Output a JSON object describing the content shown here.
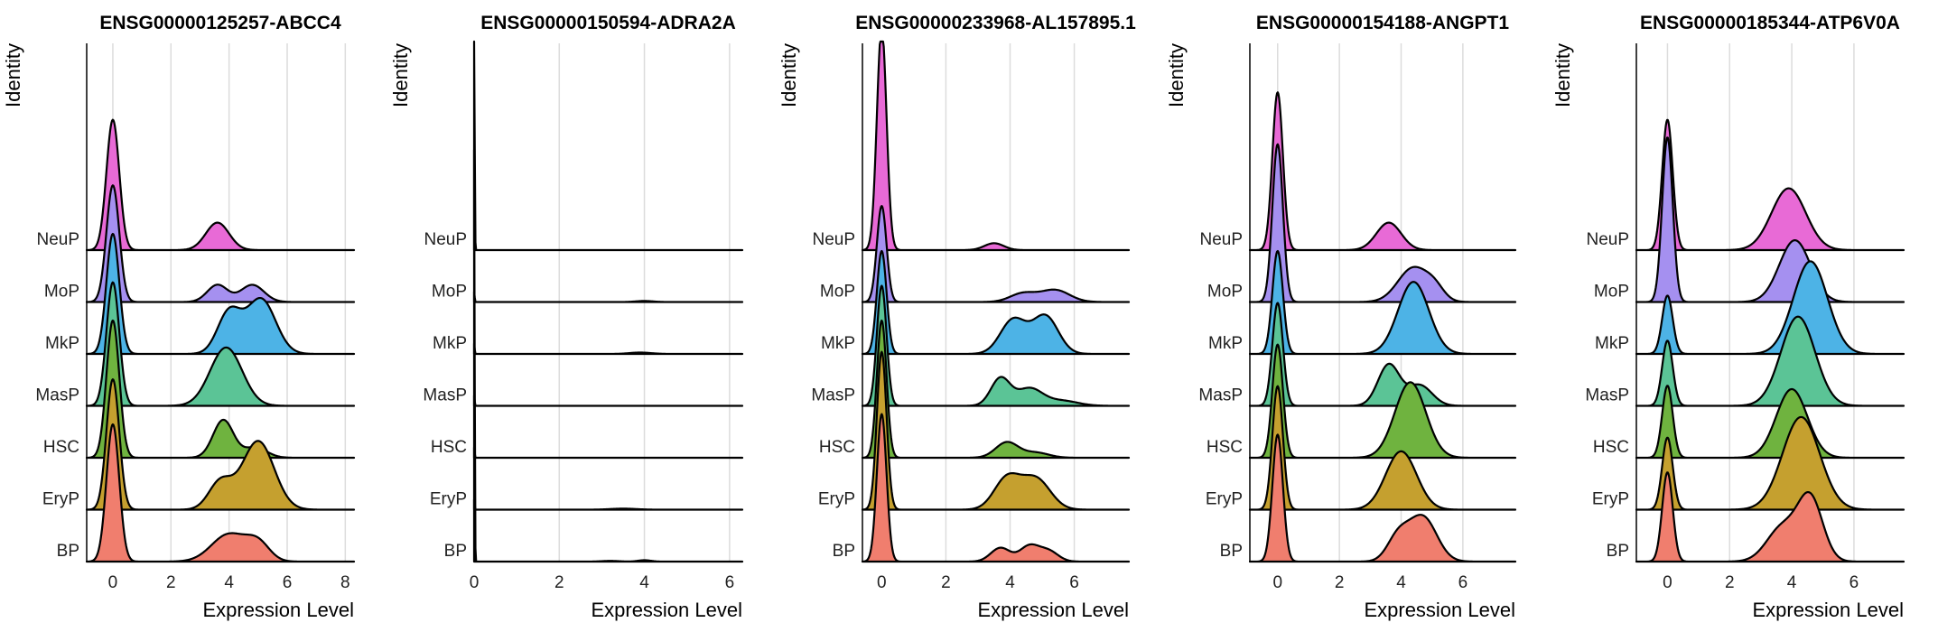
{
  "chart_data": [
    {
      "type": "ridgeline",
      "title": "ENSG00000125257-ABCC4",
      "xlabel": "Expression Level",
      "ylabel": "Identity",
      "xlim": [
        -0.9,
        8.3
      ],
      "xticks": [
        0,
        2,
        4,
        6,
        8
      ],
      "grid": true,
      "categories": [
        "BP",
        "EryP",
        "HSC",
        "MasP",
        "MkP",
        "MoP",
        "NeuP"
      ],
      "colors": [
        "#F07E6E",
        "#C5A02F",
        "#6FB33F",
        "#5BC496",
        "#4DB3E6",
        "#A590F0",
        "#E86AD6"
      ],
      "series": [
        {
          "name": "BP",
          "peaks": [
            {
              "mu": 0,
              "sd": 0.22,
              "h": 4.0
            },
            {
              "mu": 4.0,
              "sd": 0.6,
              "h": 0.8
            },
            {
              "mu": 5.0,
              "sd": 0.4,
              "h": 0.5
            }
          ]
        },
        {
          "name": "EryP",
          "peaks": [
            {
              "mu": 0,
              "sd": 0.22,
              "h": 3.8
            },
            {
              "mu": 3.7,
              "sd": 0.4,
              "h": 0.8
            },
            {
              "mu": 5.0,
              "sd": 0.55,
              "h": 2.0
            }
          ]
        },
        {
          "name": "HSC",
          "peaks": [
            {
              "mu": 0,
              "sd": 0.22,
              "h": 4.0
            },
            {
              "mu": 3.8,
              "sd": 0.35,
              "h": 1.1
            },
            {
              "mu": 4.9,
              "sd": 0.4,
              "h": 0.3
            }
          ]
        },
        {
          "name": "MasP",
          "peaks": [
            {
              "mu": 0,
              "sd": 0.22,
              "h": 3.6
            },
            {
              "mu": 3.9,
              "sd": 0.55,
              "h": 1.7
            }
          ]
        },
        {
          "name": "MkP",
          "peaks": [
            {
              "mu": 0,
              "sd": 0.22,
              "h": 3.5
            },
            {
              "mu": 4.0,
              "sd": 0.4,
              "h": 1.2
            },
            {
              "mu": 5.1,
              "sd": 0.5,
              "h": 1.6
            }
          ]
        },
        {
          "name": "MoP",
          "peaks": [
            {
              "mu": 0,
              "sd": 0.22,
              "h": 3.4
            },
            {
              "mu": 3.6,
              "sd": 0.35,
              "h": 0.5
            },
            {
              "mu": 4.8,
              "sd": 0.4,
              "h": 0.5
            }
          ]
        },
        {
          "name": "NeuP",
          "peaks": [
            {
              "mu": 0,
              "sd": 0.22,
              "h": 3.8
            },
            {
              "mu": 3.6,
              "sd": 0.4,
              "h": 0.8
            }
          ]
        }
      ]
    },
    {
      "type": "ridgeline",
      "title": "ENSG00000150594-ADRA2A",
      "xlabel": "Expression Level",
      "ylabel": "Identity",
      "xlim": [
        0,
        6.3
      ],
      "xticks": [
        0,
        2,
        4,
        6
      ],
      "grid": true,
      "categories": [
        "BP",
        "EryP",
        "HSC",
        "MasP",
        "MkP",
        "MoP",
        "NeuP"
      ],
      "colors": [
        "#F07E6E",
        "#C5A02F",
        "#6FB33F",
        "#5BC496",
        "#4DB3E6",
        "#A590F0",
        "#E86AD6"
      ],
      "series": [
        {
          "name": "BP",
          "peaks": [
            {
              "mu": 0,
              "sd": 0.012,
              "h": 12.0
            },
            {
              "mu": 3.2,
              "sd": 0.2,
              "h": 0.02
            },
            {
              "mu": 4.0,
              "sd": 0.15,
              "h": 0.04
            }
          ]
        },
        {
          "name": "EryP",
          "peaks": [
            {
              "mu": 0,
              "sd": 0.012,
              "h": 0.3
            },
            {
              "mu": 3.5,
              "sd": 0.3,
              "h": 0.03
            }
          ]
        },
        {
          "name": "HSC",
          "peaks": [
            {
              "mu": 0,
              "sd": 0.012,
              "h": 0.3
            }
          ]
        },
        {
          "name": "MasP",
          "peaks": [
            {
              "mu": 0,
              "sd": 0.012,
              "h": 0.3
            }
          ]
        },
        {
          "name": "MkP",
          "peaks": [
            {
              "mu": 0,
              "sd": 0.012,
              "h": 0.3
            },
            {
              "mu": 3.9,
              "sd": 0.25,
              "h": 0.04
            }
          ]
        },
        {
          "name": "MoP",
          "peaks": [
            {
              "mu": 0,
              "sd": 0.012,
              "h": 0.3
            },
            {
              "mu": 4.0,
              "sd": 0.2,
              "h": 0.03
            }
          ]
        },
        {
          "name": "NeuP",
          "peaks": [
            {
              "mu": 0,
              "sd": 0.012,
              "h": 7.0
            }
          ]
        }
      ]
    },
    {
      "type": "ridgeline",
      "title": "ENSG00000233968-AL157895.1",
      "xlabel": "Expression Level",
      "ylabel": "Identity",
      "xlim": [
        -0.6,
        7.7
      ],
      "xticks": [
        0,
        2,
        4,
        6
      ],
      "grid": true,
      "categories": [
        "BP",
        "EryP",
        "HSC",
        "MasP",
        "MkP",
        "MoP",
        "NeuP"
      ],
      "colors": [
        "#F07E6E",
        "#C5A02F",
        "#6FB33F",
        "#5BC496",
        "#4DB3E6",
        "#A590F0",
        "#E86AD6"
      ],
      "series": [
        {
          "name": "BP",
          "peaks": [
            {
              "mu": 0,
              "sd": 0.15,
              "h": 4.3
            },
            {
              "mu": 3.7,
              "sd": 0.3,
              "h": 0.4
            },
            {
              "mu": 4.6,
              "sd": 0.3,
              "h": 0.45
            },
            {
              "mu": 5.2,
              "sd": 0.3,
              "h": 0.3
            }
          ]
        },
        {
          "name": "EryP",
          "peaks": [
            {
              "mu": 0,
              "sd": 0.15,
              "h": 4.6
            },
            {
              "mu": 3.9,
              "sd": 0.4,
              "h": 0.9
            },
            {
              "mu": 4.8,
              "sd": 0.45,
              "h": 0.9
            }
          ]
        },
        {
          "name": "HSC",
          "peaks": [
            {
              "mu": 0,
              "sd": 0.15,
              "h": 4.0
            },
            {
              "mu": 3.9,
              "sd": 0.35,
              "h": 0.45
            },
            {
              "mu": 4.8,
              "sd": 0.4,
              "h": 0.15
            }
          ]
        },
        {
          "name": "MasP",
          "peaks": [
            {
              "mu": 0,
              "sd": 0.15,
              "h": 3.5
            },
            {
              "mu": 3.7,
              "sd": 0.3,
              "h": 0.8
            },
            {
              "mu": 4.6,
              "sd": 0.4,
              "h": 0.5
            },
            {
              "mu": 5.6,
              "sd": 0.5,
              "h": 0.15
            }
          ]
        },
        {
          "name": "MkP",
          "peaks": [
            {
              "mu": 0,
              "sd": 0.15,
              "h": 3.0
            },
            {
              "mu": 4.1,
              "sd": 0.4,
              "h": 1.0
            },
            {
              "mu": 5.1,
              "sd": 0.4,
              "h": 1.1
            }
          ]
        },
        {
          "name": "MoP",
          "peaks": [
            {
              "mu": 0,
              "sd": 0.15,
              "h": 2.8
            },
            {
              "mu": 4.4,
              "sd": 0.4,
              "h": 0.25
            },
            {
              "mu": 5.4,
              "sd": 0.45,
              "h": 0.35
            }
          ]
        },
        {
          "name": "NeuP",
          "peaks": [
            {
              "mu": 0,
              "sd": 0.15,
              "h": 6.5
            },
            {
              "mu": 3.5,
              "sd": 0.3,
              "h": 0.2
            }
          ]
        }
      ]
    },
    {
      "type": "ridgeline",
      "title": "ENSG00000154188-ANGPT1",
      "xlabel": "Expression Level",
      "ylabel": "Identity",
      "xlim": [
        -0.9,
        7.7
      ],
      "xticks": [
        0,
        2,
        4,
        6
      ],
      "grid": true,
      "categories": [
        "BP",
        "EryP",
        "HSC",
        "MasP",
        "MkP",
        "MoP",
        "NeuP"
      ],
      "colors": [
        "#F07E6E",
        "#C5A02F",
        "#6FB33F",
        "#5BC496",
        "#4DB3E6",
        "#A590F0",
        "#E86AD6"
      ],
      "series": [
        {
          "name": "BP",
          "peaks": [
            {
              "mu": 0,
              "sd": 0.17,
              "h": 3.7
            },
            {
              "mu": 3.9,
              "sd": 0.35,
              "h": 0.7
            },
            {
              "mu": 4.7,
              "sd": 0.45,
              "h": 1.3
            }
          ]
        },
        {
          "name": "EryP",
          "peaks": [
            {
              "mu": 0,
              "sd": 0.17,
              "h": 3.6
            },
            {
              "mu": 4.0,
              "sd": 0.5,
              "h": 1.7
            }
          ]
        },
        {
          "name": "HSC",
          "peaks": [
            {
              "mu": 0,
              "sd": 0.17,
              "h": 3.3
            },
            {
              "mu": 4.3,
              "sd": 0.5,
              "h": 2.2
            }
          ]
        },
        {
          "name": "MasP",
          "peaks": [
            {
              "mu": 0,
              "sd": 0.17,
              "h": 3.0
            },
            {
              "mu": 3.6,
              "sd": 0.35,
              "h": 1.2
            },
            {
              "mu": 4.6,
              "sd": 0.4,
              "h": 0.6
            }
          ]
        },
        {
          "name": "MkP",
          "peaks": [
            {
              "mu": 0,
              "sd": 0.17,
              "h": 3.0
            },
            {
              "mu": 4.4,
              "sd": 0.5,
              "h": 2.1
            }
          ]
        },
        {
          "name": "MoP",
          "peaks": [
            {
              "mu": 0,
              "sd": 0.17,
              "h": 4.6
            },
            {
              "mu": 4.4,
              "sd": 0.5,
              "h": 1.0
            },
            {
              "mu": 5.1,
              "sd": 0.3,
              "h": 0.3
            }
          ]
        },
        {
          "name": "NeuP",
          "peaks": [
            {
              "mu": 0,
              "sd": 0.17,
              "h": 4.6
            },
            {
              "mu": 3.6,
              "sd": 0.4,
              "h": 0.8
            }
          ]
        }
      ]
    },
    {
      "type": "ridgeline",
      "title": "ENSG00000185344-ATP6V0A",
      "xlabel": "Expression Level",
      "ylabel": "Identity",
      "xlim": [
        -1.0,
        7.6
      ],
      "xticks": [
        0,
        2,
        4,
        6
      ],
      "grid": true,
      "categories": [
        "BP",
        "EryP",
        "HSC",
        "MasP",
        "MkP",
        "MoP",
        "NeuP"
      ],
      "colors": [
        "#F07E6E",
        "#C5A02F",
        "#6FB33F",
        "#5BC496",
        "#4DB3E6",
        "#A590F0",
        "#E86AD6"
      ],
      "series": [
        {
          "name": "BP",
          "peaks": [
            {
              "mu": 0,
              "sd": 0.17,
              "h": 2.6
            },
            {
              "mu": 3.7,
              "sd": 0.5,
              "h": 1.0
            },
            {
              "mu": 4.6,
              "sd": 0.4,
              "h": 1.8
            }
          ]
        },
        {
          "name": "EryP",
          "peaks": [
            {
              "mu": 0,
              "sd": 0.17,
              "h": 2.1
            },
            {
              "mu": 4.3,
              "sd": 0.6,
              "h": 2.7
            }
          ]
        },
        {
          "name": "HSC",
          "peaks": [
            {
              "mu": 0,
              "sd": 0.17,
              "h": 2.1
            },
            {
              "mu": 4.0,
              "sd": 0.5,
              "h": 2.0
            }
          ]
        },
        {
          "name": "MasP",
          "peaks": [
            {
              "mu": 0,
              "sd": 0.17,
              "h": 1.9
            },
            {
              "mu": 4.2,
              "sd": 0.55,
              "h": 2.6
            }
          ]
        },
        {
          "name": "MkP",
          "peaks": [
            {
              "mu": 0,
              "sd": 0.17,
              "h": 1.7
            },
            {
              "mu": 4.6,
              "sd": 0.55,
              "h": 2.7
            }
          ]
        },
        {
          "name": "MoP",
          "peaks": [
            {
              "mu": 0,
              "sd": 0.17,
              "h": 4.8
            },
            {
              "mu": 4.1,
              "sd": 0.5,
              "h": 1.8
            }
          ]
        },
        {
          "name": "NeuP",
          "peaks": [
            {
              "mu": 0,
              "sd": 0.17,
              "h": 3.8
            },
            {
              "mu": 3.9,
              "sd": 0.55,
              "h": 1.8
            }
          ]
        }
      ]
    }
  ]
}
